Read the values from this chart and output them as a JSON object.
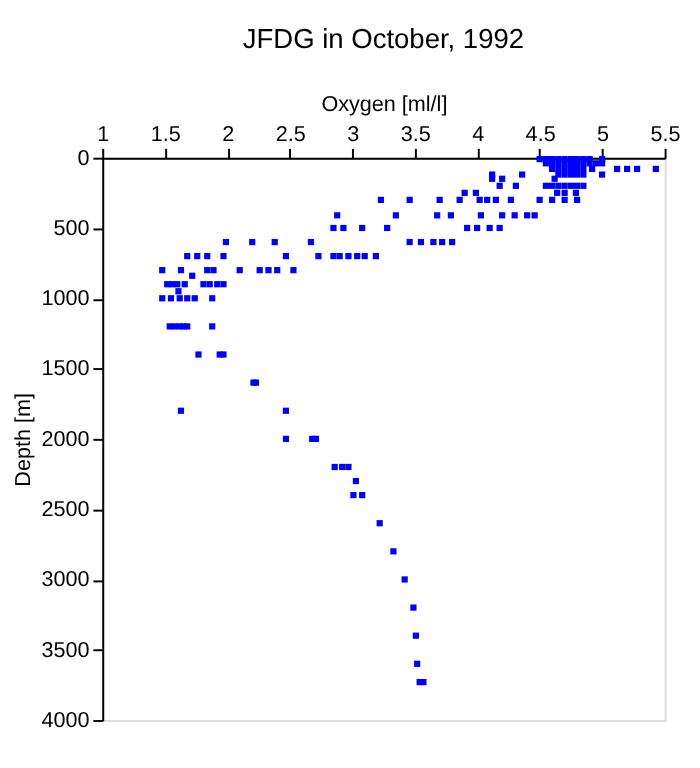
{
  "chart_data": {
    "type": "scatter",
    "title": "JFDG in October, 1992",
    "xlabel": "Oxygen [ml/l]",
    "ylabel": "Depth [m]",
    "xlim": [
      1,
      5.5
    ],
    "xticks": [
      1,
      1.5,
      2,
      2.5,
      3,
      3.5,
      4,
      4.5,
      5,
      5.5
    ],
    "ylim": [
      4000,
      0
    ],
    "yticks": [
      0,
      500,
      1000,
      1500,
      2000,
      2500,
      3000,
      3500,
      4000
    ],
    "marker": "square",
    "grid": false,
    "legend": false,
    "series": [
      {
        "color": "#0000ff",
        "x": [
          4.5,
          4.55,
          4.6,
          4.65,
          4.7,
          4.75,
          4.8,
          4.85,
          4.9,
          5.0,
          4.55,
          4.6,
          4.65,
          4.7,
          4.75,
          4.8,
          4.85,
          4.9,
          4.95,
          5.0,
          4.6,
          4.65,
          4.7,
          4.75,
          4.8,
          4.85,
          4.92,
          5.12,
          5.2,
          5.28,
          5.43,
          4.12,
          4.36,
          4.65,
          4.7,
          4.75,
          4.8,
          4.85,
          5.0,
          4.12,
          4.2,
          4.62,
          4.18,
          4.31,
          4.55,
          4.6,
          4.65,
          4.7,
          4.75,
          4.8,
          4.85,
          3.9,
          3.99,
          4.64,
          4.7,
          4.79,
          3.23,
          3.46,
          3.7,
          3.86,
          4.02,
          4.08,
          4.15,
          4.27,
          4.5,
          4.6,
          4.7,
          4.8,
          2.88,
          3.35,
          3.68,
          3.79,
          4.03,
          4.2,
          4.3,
          4.4,
          4.46,
          2.85,
          2.93,
          3.08,
          3.28,
          3.92,
          4.0,
          4.1,
          4.18,
          1.99,
          2.2,
          2.38,
          2.67,
          3.46,
          3.55,
          3.65,
          3.72,
          3.8,
          1.68,
          1.76,
          1.84,
          1.97,
          2.47,
          2.73,
          2.85,
          2.9,
          2.97,
          3.04,
          3.1,
          3.19,
          1.48,
          1.63,
          1.84,
          1.89,
          2.1,
          2.26,
          2.33,
          2.4,
          2.53,
          1.72,
          1.52,
          1.56,
          1.6,
          1.66,
          1.81,
          1.86,
          1.92,
          1.97,
          1.61,
          1.48,
          1.55,
          1.62,
          1.68,
          1.74,
          1.88,
          1.54,
          1.58,
          1.62,
          1.65,
          1.68,
          1.88,
          1.77,
          1.94,
          1.97,
          2.21,
          2.23,
          1.63,
          2.47,
          2.47,
          2.68,
          2.71,
          2.86,
          2.92,
          2.97,
          3.03,
          3.01,
          3.08,
          3.22,
          3.33,
          3.42,
          3.49,
          3.51,
          3.52,
          3.54,
          3.57
        ],
        "values": [
          10,
          10,
          10,
          10,
          10,
          10,
          10,
          10,
          10,
          10,
          40,
          40,
          40,
          40,
          40,
          40,
          40,
          40,
          40,
          40,
          80,
          80,
          80,
          80,
          80,
          80,
          80,
          80,
          80,
          80,
          80,
          120,
          120,
          120,
          120,
          120,
          120,
          120,
          120,
          150,
          150,
          150,
          200,
          200,
          200,
          200,
          200,
          200,
          200,
          200,
          200,
          250,
          250,
          250,
          250,
          250,
          300,
          300,
          300,
          300,
          300,
          300,
          300,
          300,
          300,
          300,
          300,
          300,
          410,
          410,
          410,
          410,
          410,
          410,
          410,
          410,
          410,
          500,
          500,
          500,
          500,
          500,
          500,
          500,
          500,
          600,
          600,
          600,
          600,
          600,
          600,
          600,
          600,
          600,
          700,
          700,
          700,
          700,
          700,
          700,
          700,
          700,
          700,
          700,
          700,
          700,
          800,
          800,
          800,
          800,
          800,
          800,
          800,
          800,
          800,
          840,
          900,
          900,
          900,
          900,
          900,
          900,
          900,
          900,
          950,
          1000,
          1000,
          1000,
          1000,
          1000,
          1000,
          1200,
          1200,
          1200,
          1200,
          1200,
          1200,
          1400,
          1400,
          1400,
          1600,
          1600,
          1800,
          1800,
          2000,
          2000,
          2000,
          2200,
          2200,
          2200,
          2300,
          2400,
          2400,
          2600,
          2800,
          3000,
          3200,
          3400,
          3600,
          3730,
          3730
        ]
      }
    ]
  }
}
